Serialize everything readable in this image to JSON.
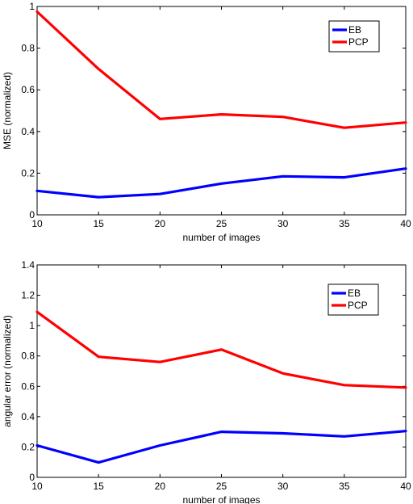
{
  "chart_data": [
    {
      "type": "line",
      "xlabel": "number of images",
      "ylabel": "MSE (normalized)",
      "x": [
        10,
        15,
        20,
        25,
        30,
        35,
        40
      ],
      "xlim": [
        10,
        40
      ],
      "ylim": [
        0,
        1
      ],
      "xticks": [
        "10",
        "15",
        "20",
        "25",
        "30",
        "35",
        "40"
      ],
      "yticks": [
        "0",
        "0.2",
        "0.4",
        "0.6",
        "0.8",
        "1"
      ],
      "ytick_values": [
        0,
        0.2,
        0.4,
        0.6,
        0.8,
        1
      ],
      "grid": false,
      "legend_position": "top-right",
      "series": [
        {
          "name": "EB",
          "color": "#0000ff",
          "values": [
            0.115,
            0.085,
            0.1,
            0.15,
            0.185,
            0.18,
            0.222
          ]
        },
        {
          "name": "PCP",
          "color": "#ff0000",
          "values": [
            0.975,
            0.7,
            0.46,
            0.482,
            0.47,
            0.418,
            0.443
          ]
        }
      ]
    },
    {
      "type": "line",
      "xlabel": "number of images",
      "ylabel": "angular error (normalized)",
      "x": [
        10,
        15,
        20,
        25,
        30,
        35,
        40
      ],
      "xlim": [
        10,
        40
      ],
      "ylim": [
        0,
        1.4
      ],
      "xticks": [
        "10",
        "15",
        "20",
        "25",
        "30",
        "35",
        "40"
      ],
      "yticks": [
        "0",
        "0.2",
        "0.4",
        "0.6",
        "0.8",
        "1",
        "1.2",
        "1.4"
      ],
      "ytick_values": [
        0,
        0.2,
        0.4,
        0.6,
        0.8,
        1,
        1.2,
        1.4
      ],
      "grid": false,
      "legend_position": "top-right",
      "series": [
        {
          "name": "EB",
          "color": "#0000ff",
          "values": [
            0.21,
            0.098,
            0.21,
            0.3,
            0.29,
            0.27,
            0.305
          ]
        },
        {
          "name": "PCP",
          "color": "#ff0000",
          "values": [
            1.09,
            0.795,
            0.76,
            0.842,
            0.685,
            0.608,
            0.592
          ]
        }
      ]
    }
  ]
}
